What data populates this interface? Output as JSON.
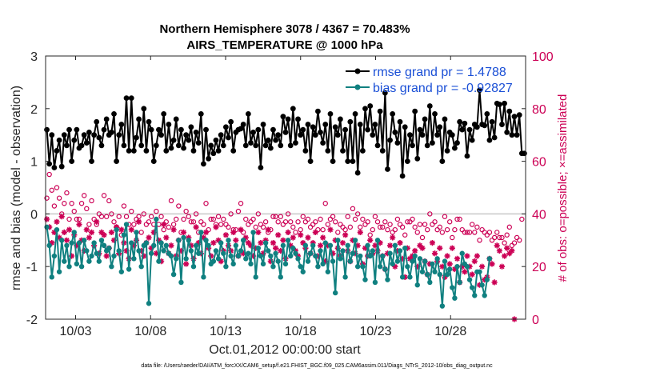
{
  "chart_data": {
    "type": "line",
    "title": "Northern Hemisphere 3078 / 4367 = 70.483%",
    "subtitle": "AIRS_TEMPERATURE @ 1000 hPa",
    "xlabel": "Oct.01,2012 00:00:00 start",
    "ylabel": "rmse and bias (model - observation)",
    "ylabel_right": "# of obs: o=possible; ×=assimilated",
    "footnote": "data file: /Users/raeder/DAI/ATM_forcXX/CAM6_setup/f.e21.FHIST_BGC.f09_025.CAM6assim.011/Diags_NTrS_2012-10/obs_diag_output.nc",
    "xlim": [
      1,
      33
    ],
    "ylim": [
      -2,
      3
    ],
    "ylim_right": [
      0,
      100
    ],
    "x_ticks": [
      3,
      8,
      13,
      18,
      23,
      28
    ],
    "x_tick_labels": [
      "10/03",
      "10/08",
      "10/13",
      "10/18",
      "10/23",
      "10/28"
    ],
    "y_ticks": [
      -2,
      -1,
      0,
      1,
      2,
      3
    ],
    "y_ticks_right": [
      0,
      20,
      40,
      60,
      80,
      100
    ],
    "colors": {
      "rmse": "#000000",
      "bias": "#108080",
      "obs": "#cc0055",
      "legend_text": "#1a4fd6",
      "zero_line": "#c8c8c8"
    },
    "series": [
      {
        "name": "rmse grand pr = 1.4788",
        "marker": "hexagram",
        "values": [
          1.6,
          0.95,
          1.5,
          0.88,
          1.2,
          1.4,
          0.9,
          1.5,
          1.3,
          1.6,
          1.0,
          1.4,
          1.6,
          1.25,
          1.3,
          1.5,
          1.35,
          1.55,
          1.0,
          1.5,
          1.75,
          1.45,
          1.3,
          1.6,
          1.8,
          1.5,
          1.55,
          1.9,
          1.0,
          1.5,
          1.7,
          1.3,
          2.2,
          1.2,
          2.2,
          1.2,
          1.45,
          1.8,
          1.3,
          2.0,
          1.2,
          1.75,
          1.6,
          1.0,
          1.3,
          1.6,
          1.5,
          1.9,
          1.2,
          1.7,
          1.25,
          1.4,
          1.8,
          1.3,
          1.6,
          1.25,
          1.5,
          1.4,
          1.65,
          1.2,
          1.55,
          1.35,
          1.9,
          0.95,
          1.6,
          1.05,
          1.3,
          1.15,
          1.4,
          1.2,
          1.5,
          1.3,
          1.65,
          1.45,
          1.75,
          1.2,
          1.55,
          1.6,
          1.62,
          1.7,
          1.3,
          1.9,
          1.35,
          1.55,
          1.3,
          1.6,
          0.88,
          1.7,
          1.3,
          1.4,
          1.25,
          1.6,
          1.4,
          1.5,
          1.3,
          1.85,
          1.55,
          1.8,
          1.3,
          2.0,
          1.35,
          1.8,
          1.5,
          1.6,
          1.2,
          1.7,
          1.0,
          1.65,
          1.5,
          1.95,
          1.55,
          1.35,
          1.7,
          1.2,
          1.9,
          1.0,
          1.65,
          1.5,
          1.8,
          1.2,
          1.6,
          1.0,
          1.75,
          1.0,
          1.9,
          0.78,
          1.7,
          1.2,
          2.0,
          1.6,
          2.05,
          1.5,
          1.7,
          1.3,
          1.95,
          1.2,
          2.3,
          0.85,
          1.4,
          1.9,
          1.55,
          1.35,
          1.75,
          0.72,
          1.65,
          1.0,
          1.5,
          1.3,
          1.95,
          1.05,
          1.6,
          1.5,
          1.8,
          1.3,
          2.05,
          1.35,
          1.9,
          1.5,
          1.65,
          1.0,
          1.8,
          1.2,
          1.55,
          1.5,
          1.25,
          1.35,
          1.75,
          1.6,
          1.72,
          1.1,
          1.6,
          1.4,
          1.7,
          1.65,
          2.35,
          1.7,
          1.68,
          1.9,
          1.4,
          1.75,
          1.45,
          2.1,
          2.08,
          1.7,
          2.1,
          1.55,
          1.95,
          1.5,
          1.85,
          1.5,
          1.88,
          1.15,
          1.15
        ]
      },
      {
        "name": "bias grand pr = -0.92827",
        "marker": "circle",
        "values": [
          -0.25,
          -0.6,
          -1.2,
          -0.8,
          -0.3,
          -1.1,
          -0.5,
          -0.9,
          -0.6,
          -1.0,
          -0.55,
          -0.35,
          -0.95,
          -0.55,
          -1.0,
          -0.5,
          -0.7,
          -0.9,
          -0.8,
          -0.55,
          -0.75,
          -0.9,
          -0.5,
          -0.6,
          -0.7,
          -0.65,
          -1.0,
          -0.8,
          -0.3,
          -0.7,
          -1.1,
          -0.4,
          -0.2,
          -1.05,
          -0.55,
          -0.85,
          -0.35,
          -0.7,
          -1.0,
          -0.6,
          -0.55,
          -1.7,
          -0.75,
          -0.6,
          -0.1,
          -0.9,
          -0.55,
          -0.7,
          -0.6,
          -0.75,
          -0.8,
          -1.15,
          -0.85,
          -0.5,
          -1.3,
          -0.45,
          -0.85,
          -0.5,
          -0.7,
          -1.0,
          -0.6,
          -0.75,
          -0.35,
          -1.2,
          -0.5,
          -0.6,
          -0.95,
          -0.9,
          -0.7,
          -0.85,
          -0.55,
          -0.75,
          -1.0,
          -0.5,
          -0.8,
          -0.95,
          -0.6,
          -0.8,
          -0.7,
          -0.5,
          -0.85,
          -0.75,
          -0.95,
          -0.35,
          -1.2,
          -0.65,
          -0.8,
          -0.95,
          -0.55,
          -0.7,
          -0.8,
          -1.0,
          -0.75,
          -0.9,
          -1.2,
          -0.6,
          -0.95,
          -0.5,
          -0.8,
          -0.65,
          -0.75,
          -0.85,
          -1.0,
          -1.1,
          -0.6,
          -0.9,
          -0.75,
          -0.6,
          -0.8,
          -1.0,
          -0.7,
          -0.95,
          -0.55,
          -1.1,
          -0.6,
          -0.9,
          -1.5,
          -0.5,
          -0.85,
          -0.7,
          -1.2,
          -0.6,
          -0.9,
          -0.75,
          -0.5,
          -1.0,
          -0.8,
          -1.0,
          -1.25,
          -0.6,
          -0.8,
          -0.7,
          -1.3,
          -0.5,
          -1.0,
          -0.8,
          -1.05,
          -1.25,
          -0.75,
          -0.95,
          -0.6,
          -0.9,
          -0.7,
          -1.2,
          -0.65,
          -1.0,
          -1.2,
          -0.9,
          -0.8,
          -1.35,
          -0.85,
          -1.1,
          -0.9,
          -1.15,
          -1.3,
          -0.95,
          -1.1,
          -0.85,
          -1.15,
          -1.75,
          -0.9,
          -1.15,
          -1.05,
          -1.4,
          -1.6,
          -1.0,
          -1.3,
          -0.75,
          -0.95,
          -1.0,
          -1.25,
          -1.4,
          -1.55,
          -1.1,
          -1.1,
          -1.35,
          -1.55,
          -1.25,
          -0.85
        ]
      },
      {
        "name": "obs possible",
        "axis": "right",
        "marker": "o",
        "values": [
          46,
          55,
          49,
          43,
          50,
          46,
          40,
          44,
          48,
          38,
          44,
          41,
          38,
          38,
          44,
          47,
          42,
          36,
          45,
          38,
          36,
          40,
          39,
          47,
          39,
          45,
          40,
          37,
          35,
          39,
          32,
          43,
          39,
          36,
          41,
          36,
          38,
          39,
          33,
          40,
          36,
          37,
          39,
          36,
          41,
          36,
          39,
          34,
          37,
          35,
          45,
          36,
          38,
          43,
          33,
          38,
          41,
          39,
          37,
          37,
          40,
          33,
          37,
          36,
          44,
          34,
          38,
          38,
          36,
          39,
          36,
          38,
          36,
          35,
          40,
          34,
          34,
          41,
          44,
          33,
          38,
          36,
          37,
          38,
          35,
          40,
          36,
          35,
          37,
          33,
          34,
          39,
          39,
          37,
          39,
          36,
          37,
          40,
          37,
          35,
          33,
          37,
          34,
          39,
          37,
          38,
          35,
          36,
          37,
          34,
          38,
          34,
          44,
          36,
          38,
          39,
          37,
          33,
          36,
          35,
          34,
          39,
          35,
          42,
          38,
          40,
          35,
          38,
          36,
          37,
          32,
          34,
          39,
          37,
          35,
          35,
          37,
          34,
          36,
          33,
          34,
          38,
          36,
          35,
          32,
          37,
          37,
          38,
          35,
          33,
          36,
          31,
          36,
          34,
          40,
          36,
          37,
          34,
          35,
          33,
          39,
          34,
          37,
          31,
          34,
          38,
          38,
          34,
          33,
          33,
          33,
          36,
          33,
          35,
          30,
          34,
          33,
          32,
          33,
          30,
          31,
          33,
          31,
          31,
          29,
          32,
          35,
          28,
          29,
          31,
          30,
          38
        ]
      },
      {
        "name": "obs assimilated",
        "axis": "right",
        "marker": "*",
        "values": [
          38,
          35,
          29,
          33,
          37,
          31,
          39,
          33,
          30,
          34,
          24,
          32,
          28,
          36,
          30,
          26,
          34,
          31,
          33,
          28,
          37,
          25,
          33,
          32,
          24,
          27,
          33,
          30,
          35,
          25,
          34,
          29,
          26,
          23,
          34,
          28,
          30,
          37,
          26,
          24,
          29,
          31,
          27,
          33,
          25,
          30,
          22,
          36,
          31,
          25,
          28,
          34,
          24,
          30,
          26,
          33,
          21,
          31,
          28,
          23,
          35,
          29,
          25,
          31,
          33,
          27,
          24,
          29,
          35,
          30,
          22,
          26,
          32,
          28,
          26,
          33,
          30,
          24,
          34,
          25,
          31,
          29,
          28,
          24,
          27,
          33,
          29,
          25,
          30,
          34,
          22,
          29,
          27,
          32,
          26,
          30,
          23,
          33,
          28,
          31,
          26,
          24,
          32,
          29,
          27,
          31,
          25,
          29,
          33,
          24,
          28,
          31,
          22,
          28,
          34,
          25,
          30,
          27,
          24,
          29,
          32,
          26,
          22,
          30,
          25,
          28,
          33,
          21,
          27,
          24,
          30,
          25,
          28,
          26,
          29,
          24,
          19,
          25,
          28,
          31,
          20,
          26,
          29,
          23,
          16,
          27,
          23,
          24,
          26,
          20,
          28,
          27,
          22,
          17,
          21,
          29,
          25,
          22,
          27,
          20,
          16,
          24,
          21,
          27,
          19,
          23,
          14,
          20,
          18,
          24,
          20,
          17,
          22,
          24,
          13,
          20,
          15,
          16,
          23,
          21,
          14,
          28,
          26,
          20,
          24,
          27,
          25,
          26,
          0
        ]
      }
    ]
  }
}
